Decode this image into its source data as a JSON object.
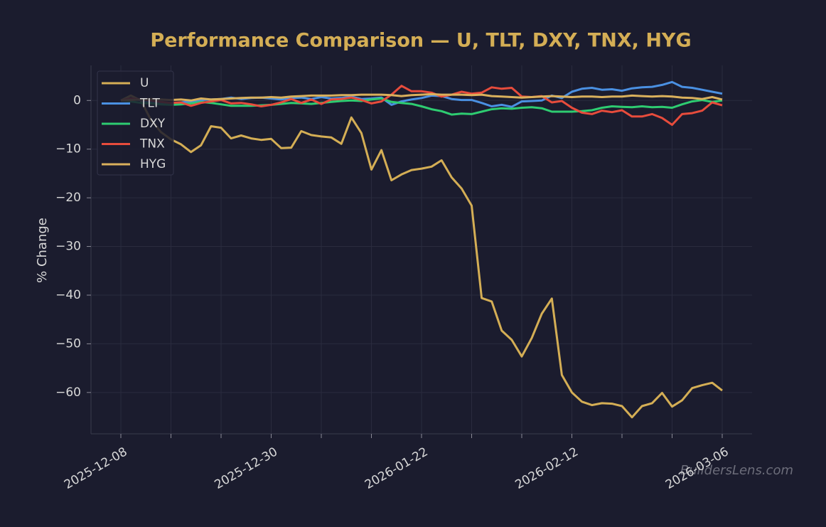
{
  "chart_data": {
    "type": "line",
    "title": "Performance Comparison — U, TLT, DXY, TNX, HYG",
    "y_label": "% Change",
    "watermark": "BuildersLens.com",
    "categories": [
      "2025-12-08",
      null,
      null,
      null,
      null,
      null,
      null,
      null,
      null,
      null,
      null,
      null,
      null,
      null,
      null,
      "2025-12-30",
      null,
      null,
      null,
      null,
      null,
      null,
      null,
      null,
      null,
      null,
      null,
      null,
      null,
      null,
      "2026-01-22",
      null,
      null,
      null,
      null,
      null,
      null,
      null,
      null,
      null,
      null,
      null,
      null,
      null,
      null,
      "2026-02-12",
      null,
      null,
      null,
      null,
      null,
      null,
      null,
      null,
      null,
      null,
      null,
      null,
      null,
      null,
      "2026-03-06"
    ],
    "ylim": [
      -68.5,
      7.2
    ],
    "yticks": [
      {
        "value": -60,
        "label": "−60"
      },
      {
        "value": -50,
        "label": "−50"
      },
      {
        "value": -40,
        "label": "−40"
      },
      {
        "value": -30,
        "label": "−30"
      },
      {
        "value": -20,
        "label": "−20"
      },
      {
        "value": -10,
        "label": "−10"
      },
      0
    ],
    "grid": true,
    "legend": "upper left",
    "series": [
      {
        "name": "U",
        "color": "#d4ae55",
        "values": [
          0,
          1.0,
          0,
          -4,
          -6.5,
          -8,
          -9,
          -10.6,
          -9.2,
          -5.3,
          -5.6,
          -7.8,
          -7.2,
          -7.8,
          -8.1,
          -7.9,
          -9.8,
          -9.7,
          -6.3,
          -7.1,
          -7.4,
          -7.6,
          -8.9,
          -3.5,
          -6.7,
          -14.2,
          -10.2,
          -16.4,
          -15.2,
          -14.3,
          -14.0,
          -13.6,
          -12.3,
          -15.8,
          -18.1,
          -21.6,
          -40.6,
          -41.3,
          -47.3,
          -49.2,
          -52.6,
          -48.8,
          -43.8,
          -40.7,
          -56.4,
          -60.0,
          -61.9,
          -62.6,
          -62.2,
          -62.3,
          -62.8,
          -65.1,
          -62.8,
          -62.2,
          -60.1,
          -62.9,
          -61.6,
          -59.1,
          -58.5,
          -58.0,
          -59.6
        ]
      },
      {
        "name": "TLT",
        "color": "#4a90e2",
        "values": [
          0,
          0.3,
          0.1,
          -0.3,
          -0.5,
          -0.6,
          -0.4,
          -0.2,
          0.1,
          0.2,
          0.3,
          0.6,
          0.3,
          0.5,
          0.6,
          0.4,
          0.2,
          0.5,
          0.6,
          0.3,
          0.7,
          0.4,
          0.5,
          0.8,
          0.3,
          0.4,
          0.6,
          -0.9,
          -0.2,
          0.2,
          0.5,
          1.0,
          0.9,
          0.3,
          0.1,
          0.1,
          -0.5,
          -1.2,
          -0.9,
          -1.3,
          -0.2,
          -0.1,
          0.0,
          1.0,
          0.5,
          1.8,
          2.4,
          2.6,
          2.2,
          2.3,
          2.0,
          2.5,
          2.7,
          2.8,
          3.2,
          3.8,
          2.8,
          2.6,
          2.2,
          1.8,
          1.4
        ]
      },
      {
        "name": "DXY",
        "color": "#2ecc71",
        "values": [
          0,
          -0.2,
          -0.5,
          -0.6,
          -0.8,
          -0.9,
          -0.8,
          -0.6,
          -0.3,
          -0.5,
          -0.8,
          -1.1,
          -1.1,
          -1.1,
          -1.0,
          -0.9,
          -0.7,
          -0.5,
          -0.6,
          -0.7,
          -0.5,
          -0.3,
          -0.1,
          0.0,
          -0.1,
          0.2,
          0.4,
          -0.3,
          -0.5,
          -0.7,
          -1.2,
          -1.8,
          -2.2,
          -2.9,
          -2.7,
          -2.8,
          -2.3,
          -1.8,
          -1.6,
          -1.7,
          -1.5,
          -1.4,
          -1.6,
          -2.3,
          -2.3,
          -2.3,
          -2.2,
          -2.0,
          -1.5,
          -1.2,
          -1.3,
          -1.4,
          -1.2,
          -1.4,
          -1.3,
          -1.5,
          -0.8,
          -0.2,
          0.1,
          -0.3,
          0.0
        ]
      },
      {
        "name": "TNX",
        "color": "#e74c3c",
        "values": [
          0,
          0.4,
          0.2,
          0.0,
          -0.3,
          -0.5,
          -0.4,
          -1.1,
          -0.5,
          -0.2,
          0.1,
          -0.6,
          -0.5,
          -0.8,
          -1.2,
          -0.9,
          -0.4,
          0.3,
          -0.5,
          0.2,
          -0.7,
          0.2,
          0.3,
          0.6,
          0.1,
          -0.6,
          -0.2,
          1.2,
          3.0,
          1.9,
          1.9,
          1.6,
          0.8,
          1.2,
          1.8,
          1.4,
          1.6,
          2.7,
          2.4,
          2.6,
          0.8,
          0.7,
          0.9,
          -0.4,
          -0.1,
          -1.5,
          -2.5,
          -2.8,
          -2.1,
          -2.4,
          -2.0,
          -3.3,
          -3.3,
          -2.8,
          -3.6,
          -5.0,
          -2.8,
          -2.6,
          -2.1,
          -0.4,
          -1.0
        ]
      },
      {
        "name": "HYG",
        "color": "#d9b05c",
        "values": [
          0,
          0.1,
          0.2,
          0.3,
          0.2,
          0.1,
          0.2,
          0.0,
          0.4,
          0.2,
          0.3,
          0.4,
          0.5,
          0.6,
          0.6,
          0.7,
          0.6,
          0.8,
          0.9,
          1.0,
          1.0,
          1.0,
          1.1,
          1.1,
          1.2,
          1.2,
          1.2,
          1.1,
          0.9,
          1.1,
          1.2,
          1.3,
          1.2,
          1.2,
          1.2,
          1.1,
          1.2,
          0.9,
          0.8,
          0.7,
          0.6,
          0.7,
          0.8,
          0.9,
          0.8,
          0.7,
          0.8,
          0.8,
          0.7,
          0.8,
          0.8,
          1.0,
          0.9,
          0.8,
          0.9,
          0.8,
          0.6,
          0.5,
          0.3,
          0.7,
          0.2
        ]
      }
    ]
  }
}
